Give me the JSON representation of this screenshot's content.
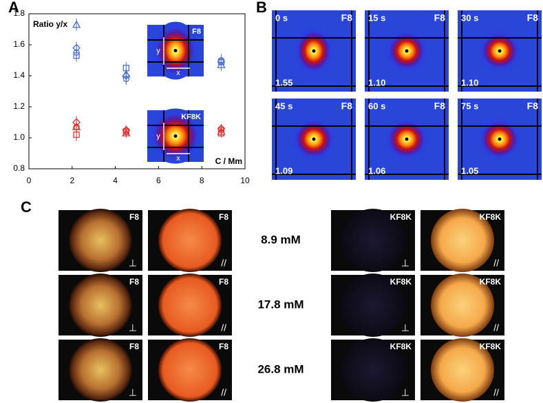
{
  "panel_labels": [
    "A",
    "B",
    "C"
  ],
  "chart_data": {
    "type": "scatter",
    "y_label": "Ratio y/x",
    "x_label": "C / Mm",
    "x": [
      2.2,
      4.5,
      8.9
    ],
    "xlim": [
      0,
      10
    ],
    "xticks": [
      0,
      2,
      4,
      6,
      8,
      10
    ],
    "ylim": [
      0.8,
      1.8
    ],
    "yticks": [
      0.8,
      {
        "value": 1,
        "label": "1.0"
      },
      1.2,
      1.4,
      1.6,
      1.8
    ],
    "series": [
      {
        "color": "#4a6fd4",
        "marker": "triangle",
        "values": [
          1.73,
          1.41,
          1.47
        ],
        "errors": [
          0.04,
          0.04,
          0.04
        ]
      },
      {
        "color": "#4a6fd4",
        "marker": "diamond",
        "values": [
          1.58,
          1.4,
          1.49
        ],
        "errors": [
          0.04,
          0.04,
          0.04
        ]
      },
      {
        "color": "#4a6fd4",
        "marker": "circle",
        "values": [
          1.55,
          1.38,
          1.5
        ],
        "errors": [
          0.04,
          0.04,
          0.04
        ]
      },
      {
        "color": "#4a6fd4",
        "marker": "square",
        "values": [
          1.53,
          1.45,
          1.49
        ],
        "errors": [
          0.04,
          0.04,
          0.04
        ]
      },
      {
        "color": "#e03030",
        "marker": "diamond",
        "values": [
          1.1,
          1.05,
          1.06
        ],
        "errors": [
          0.04,
          0.03,
          0.03
        ]
      },
      {
        "color": "#e03030",
        "marker": "circle",
        "values": [
          1.07,
          1.04,
          1.05
        ],
        "errors": [
          0.04,
          0.03,
          0.03
        ]
      },
      {
        "color": "#e03030",
        "marker": "square",
        "values": [
          1.02,
          1.04,
          1.03
        ],
        "errors": [
          0.04,
          0.03,
          0.03
        ]
      },
      {
        "color": "#e03030",
        "marker": "triangle",
        "values": [
          1.07,
          1.03,
          1.04
        ],
        "errors": [
          0.04,
          0.03,
          0.03
        ]
      }
    ]
  },
  "insets": [
    {
      "sample": "F8",
      "y": "y",
      "x": "x"
    },
    {
      "sample": "KF8K",
      "y": "y",
      "x": "x"
    }
  ],
  "panel_b": {
    "tiles": [
      {
        "time": "0 s",
        "sample": "F8",
        "ratio": "1.55"
      },
      {
        "time": "15 s",
        "sample": "F8",
        "ratio": "1.10"
      },
      {
        "time": "30 s",
        "sample": "F8",
        "ratio": "1.10"
      },
      {
        "time": "45 s",
        "sample": "F8",
        "ratio": "1.09"
      },
      {
        "time": "60 s",
        "sample": "F8",
        "ratio": "1.06"
      },
      {
        "time": "75 s",
        "sample": "F8",
        "ratio": "1.05"
      }
    ]
  },
  "panel_c": {
    "rows": [
      {
        "concentration": "8.9 mM",
        "images": [
          {
            "sample": "F8",
            "polarization": "⊥"
          },
          {
            "sample": "F8",
            "polarization": "//"
          },
          {
            "sample": "KF8K",
            "polarization": "⊥"
          },
          {
            "sample": "KF8K",
            "polarization": "//"
          }
        ]
      },
      {
        "concentration": "17.8 mM",
        "images": [
          {
            "sample": "F8",
            "polarization": "⊥"
          },
          {
            "sample": "F8",
            "polarization": "//"
          },
          {
            "sample": "KF8K",
            "polarization": "⊥"
          },
          {
            "sample": "KF8K",
            "polarization": "//"
          }
        ]
      },
      {
        "concentration": "26.8 mM",
        "images": [
          {
            "sample": "F8",
            "polarization": "⊥"
          },
          {
            "sample": "F8",
            "polarization": "//"
          },
          {
            "sample": "KF8K",
            "polarization": "⊥"
          },
          {
            "sample": "KF8K",
            "polarization": "//"
          }
        ]
      }
    ]
  }
}
